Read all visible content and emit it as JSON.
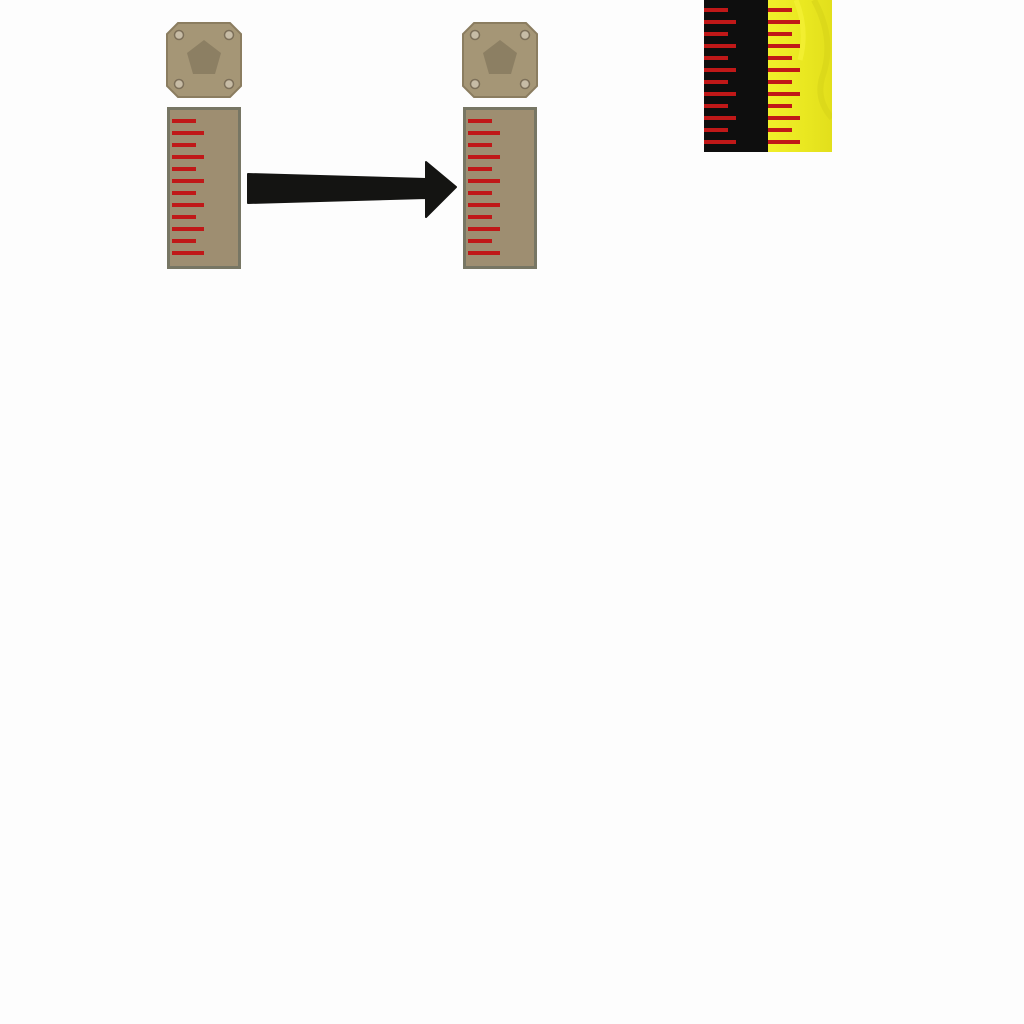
{
  "sprites": {
    "caps": [
      {
        "name": "mounting-plate-left",
        "icon": "pentagon-plate-icon"
      },
      {
        "name": "mounting-plate-right",
        "icon": "pentagon-plate-icon"
      }
    ],
    "rulers": [
      {
        "name": "ruler-left",
        "ticks": 12
      },
      {
        "name": "ruler-right",
        "ticks": 12
      }
    ],
    "arrow": {
      "icon": "right-arrow-icon"
    },
    "strip": {
      "icon": "black-yellow-ruler-strip",
      "ticks": 12
    }
  },
  "colors": {
    "plate": "#a49575",
    "plate_edge": "#8a7c5e",
    "plate_inner": "#8a7c5e",
    "ruler_body": "#9d8d70",
    "ruler_border": "#767563",
    "tick": "#c01818",
    "arrow": "#141412",
    "strip_dark": "#0e0e0e",
    "strip_yellow": "#ecea22"
  }
}
